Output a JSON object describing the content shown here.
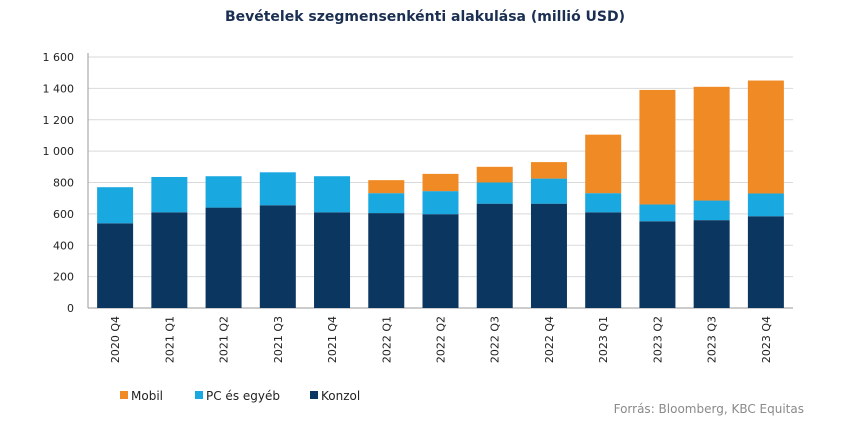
{
  "chart_data": {
    "type": "bar",
    "stacked": true,
    "title": "Bevételek szegmensenkénti alakulása (millió USD)",
    "categories": [
      "2020 Q4",
      "2021 Q1",
      "2021 Q2",
      "2021 Q3",
      "2021 Q4",
      "2022 Q1",
      "2022 Q2",
      "2022 Q3",
      "2022 Q4",
      "2023 Q1",
      "2023 Q2",
      "2023 Q3",
      "2023 Q4"
    ],
    "series": [
      {
        "name": "Konzol",
        "color": "#0b3660",
        "values": [
          540,
          610,
          640,
          655,
          610,
          605,
          598,
          665,
          665,
          610,
          553,
          560,
          585
        ]
      },
      {
        "name": "PC és egyéb",
        "color": "#19a8e0",
        "values": [
          230,
          225,
          200,
          210,
          230,
          127,
          147,
          135,
          160,
          122,
          107,
          125,
          145
        ]
      },
      {
        "name": "Mobil",
        "color": "#f08a24",
        "values": [
          0,
          0,
          0,
          0,
          0,
          83,
          110,
          100,
          105,
          373,
          730,
          725,
          720
        ]
      }
    ],
    "ylim": [
      0,
      1600
    ],
    "yticks": [
      "0",
      "200",
      "400",
      "600",
      "800",
      "1 000",
      "1 200",
      "1 400",
      "1 600"
    ],
    "ytick_values": [
      0,
      200,
      400,
      600,
      800,
      1000,
      1200,
      1400,
      1600
    ],
    "grid": true,
    "legend_order": [
      "Mobil",
      "PC és egyéb",
      "Konzol"
    ],
    "legend_position": "bottom-left",
    "source": "Forrás: Bloomberg, KBC Equitas"
  }
}
